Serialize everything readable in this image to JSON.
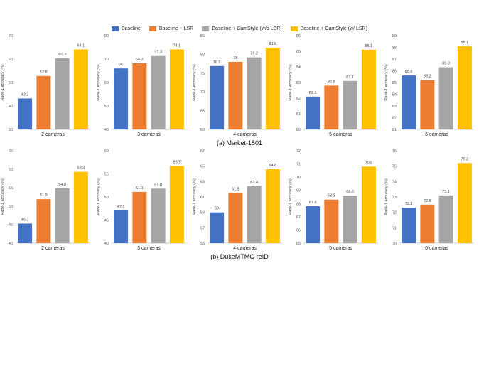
{
  "legend": {
    "items": [
      {
        "label": "Baseline",
        "color": "#4472c4"
      },
      {
        "label": "Baseline + LSR",
        "color": "#ed7d31"
      },
      {
        "label": "Baseline + CamStyle (w/o LSR)",
        "color": "#a5a5a5"
      },
      {
        "label": "Baseline + CamStyle (w/ LSR)",
        "color": "#ffc000"
      }
    ]
  },
  "captions": {
    "a": "(a) Market-1501",
    "b": "(b) DukeMTMC-reID"
  },
  "chart_data": [
    {
      "type": "bar",
      "dataset": "Market-1501",
      "xlabel": "2 cameras",
      "ylabel": "Rank-1 accuracy (%)",
      "ylim": [
        30,
        70
      ],
      "yticks": [
        30,
        40,
        50,
        60,
        70
      ],
      "values": [
        43.2,
        52.8,
        60.3,
        64.1
      ],
      "labels": [
        "43.2",
        "52.8",
        "60.3",
        "64.1"
      ]
    },
    {
      "type": "bar",
      "dataset": "Market-1501",
      "xlabel": "3 cameras",
      "ylabel": "Rank-1 accuracy (%)",
      "ylim": [
        40,
        80
      ],
      "yticks": [
        40,
        50,
        60,
        70,
        80
      ],
      "values": [
        66,
        68.2,
        71.3,
        74.1
      ],
      "labels": [
        "66",
        "68.2",
        "71.3",
        "74.1"
      ]
    },
    {
      "type": "bar",
      "dataset": "Market-1501",
      "xlabel": "4 cameras",
      "ylabel": "Rank-1 accuracy (%)",
      "ylim": [
        60,
        85
      ],
      "yticks": [
        60,
        65,
        70,
        75,
        80,
        85
      ],
      "values": [
        76.9,
        78,
        79.2,
        81.8
      ],
      "labels": [
        "76.9",
        "78",
        "79.2",
        "81.8"
      ]
    },
    {
      "type": "bar",
      "dataset": "Market-1501",
      "xlabel": "5 cameras",
      "ylabel": "Rank-1 accuracy (%)",
      "ylim": [
        80,
        86
      ],
      "yticks": [
        80,
        81,
        82,
        83,
        84,
        85,
        86
      ],
      "values": [
        82.1,
        82.8,
        83.1,
        85.1
      ],
      "labels": [
        "82.1",
        "82.8",
        "83.1",
        "85.1"
      ]
    },
    {
      "type": "bar",
      "dataset": "Market-1501",
      "xlabel": "6 cameras",
      "ylabel": "Rank-1 accuracy (%)",
      "ylim": [
        81,
        89
      ],
      "yticks": [
        81,
        82,
        83,
        84,
        85,
        86,
        87,
        88,
        89
      ],
      "values": [
        85.6,
        85.2,
        86.3,
        88.1
      ],
      "labels": [
        "85.6",
        "85.2",
        "86.3",
        "88.1"
      ]
    },
    {
      "type": "bar",
      "dataset": "DukeMTMC-reID",
      "xlabel": "2 cameras",
      "ylabel": "Rank-1 accuracy (%)",
      "ylim": [
        40,
        65
      ],
      "yticks": [
        40,
        45,
        50,
        55,
        60,
        65
      ],
      "values": [
        45.3,
        51.9,
        54.8,
        59.3
      ],
      "labels": [
        "45.3",
        "51.9",
        "54.8",
        "59.3"
      ]
    },
    {
      "type": "bar",
      "dataset": "DukeMTMC-reID",
      "xlabel": "3 cameras",
      "ylabel": "Rank-1 accuracy (%)",
      "ylim": [
        40,
        60
      ],
      "yticks": [
        40,
        45,
        50,
        55,
        60
      ],
      "values": [
        47.1,
        51.1,
        51.8,
        56.7
      ],
      "labels": [
        "47.1",
        "51.1",
        "51.8",
        "56.7"
      ]
    },
    {
      "type": "bar",
      "dataset": "DukeMTMC-reID",
      "xlabel": "4 cameras",
      "ylabel": "Rank-1 accuracy (%)",
      "ylim": [
        55,
        67
      ],
      "yticks": [
        55,
        57,
        59,
        61,
        63,
        65,
        67
      ],
      "values": [
        59,
        61.5,
        62.4,
        64.6
      ],
      "labels": [
        "59",
        "61.5",
        "62.4",
        "64.6"
      ]
    },
    {
      "type": "bar",
      "dataset": "DukeMTMC-reID",
      "xlabel": "5 cameras",
      "ylabel": "Rank-1 accuracy (%)",
      "ylim": [
        65,
        72
      ],
      "yticks": [
        65,
        66,
        67,
        68,
        69,
        70,
        71,
        72
      ],
      "values": [
        67.8,
        68.3,
        68.6,
        70.8
      ],
      "labels": [
        "67.8",
        "68.3",
        "68.6",
        "70.8"
      ]
    },
    {
      "type": "bar",
      "dataset": "DukeMTMC-reID",
      "xlabel": "6 cameras",
      "ylabel": "Rank-1 accuracy (%)",
      "ylim": [
        70,
        76
      ],
      "yticks": [
        70,
        71,
        72,
        73,
        74,
        75,
        76
      ],
      "values": [
        72.3,
        72.5,
        73.1,
        75.2
      ],
      "labels": [
        "72.3",
        "72.5",
        "73.1",
        "75.2"
      ]
    }
  ]
}
